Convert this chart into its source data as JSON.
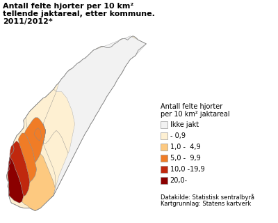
{
  "title_line1": "Antall felte hjorter per 10 km²",
  "title_line2": "tellende jaktareal, etter kommune.",
  "title_line3": "2011/2012*",
  "legend_title_line1": "Antall felte hjorter",
  "legend_title_line2": "per 10 km² jaktareal",
  "legend_labels": [
    "Ikke jakt",
    "- 0,9",
    "1,0 -  4,9",
    "5,0 -  9,9",
    "10,0 -19,9",
    "20,0-"
  ],
  "legend_colors": [
    "#f2f2f2",
    "#fef0d2",
    "#fdc980",
    "#f07c26",
    "#c0280e",
    "#8b0000"
  ],
  "source_line1": "Datakilde: Statistisk sentralbyrå",
  "source_line2": "Kartgrunnlag: Statens kartverk",
  "background_color": "#ffffff",
  "title_fontsize": 8.0,
  "legend_fontsize": 7.0,
  "source_fontsize": 6.0
}
